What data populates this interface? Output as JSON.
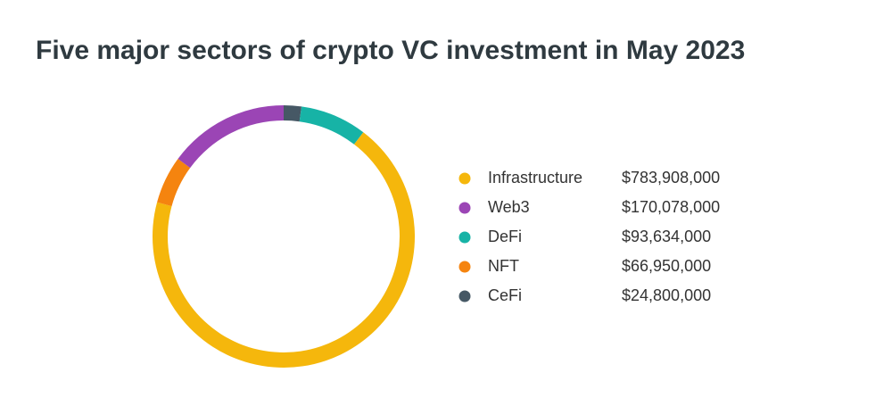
{
  "chart_data": {
    "type": "donut",
    "title": "Five major sectors of crypto VC investment in May 2023",
    "categories": [
      "Infrastructure",
      "Web3",
      "DeFi",
      "NFT",
      "CeFi"
    ],
    "values": [
      783908000,
      170078000,
      93634000,
      66950000,
      24800000
    ],
    "value_labels": [
      "$783,908,000",
      "$170,078,000",
      "$93,634,000",
      "$66,950,000",
      "$24,800,000"
    ],
    "colors": [
      "#f5b70c",
      "#9b45b5",
      "#17b3a6",
      "#f5840f",
      "#465865"
    ],
    "legend": "right"
  }
}
